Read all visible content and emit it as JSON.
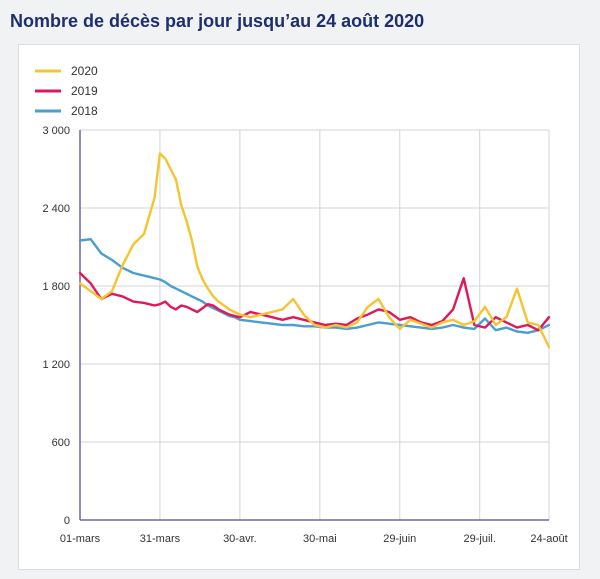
{
  "title": "Nombre de décès par jour jusqu’au 24 août 2020",
  "colors": {
    "title": "#1c2f6e",
    "axis": "#6a63b6",
    "grid": "#d4d4d4"
  },
  "chart_data": {
    "type": "line",
    "title": "Nombre de décès par jour jusqu’au 24 août 2020",
    "xlabel": "",
    "ylabel": "",
    "ylim": [
      0,
      3000
    ],
    "yticks": [
      0,
      600,
      1200,
      1800,
      2400,
      3000
    ],
    "ytick_labels": [
      "0",
      "600",
      "1 200",
      "1 800",
      "2 400",
      "3 000"
    ],
    "xticks": [
      {
        "day": 0,
        "label": "01-mars"
      },
      {
        "day": 30,
        "label": "31-mars"
      },
      {
        "day": 60,
        "label": "30-avr."
      },
      {
        "day": 90,
        "label": "30-mai"
      },
      {
        "day": 120,
        "label": "29-juin"
      },
      {
        "day": 150,
        "label": "29-juil."
      },
      {
        "day": 176,
        "label": "24-août"
      }
    ],
    "grid": true,
    "legend_position": "top-left",
    "x": [
      0,
      4,
      8,
      12,
      16,
      20,
      24,
      28,
      30,
      32,
      34,
      36,
      38,
      40,
      42,
      44,
      46,
      48,
      50,
      52,
      54,
      56,
      58,
      60,
      64,
      68,
      72,
      76,
      80,
      84,
      88,
      92,
      96,
      100,
      104,
      108,
      112,
      116,
      120,
      124,
      128,
      132,
      136,
      140,
      144,
      148,
      152,
      156,
      160,
      164,
      168,
      172,
      176
    ],
    "series": [
      {
        "name": "2020",
        "color": "#f4c431",
        "values": [
          1820,
          1760,
          1700,
          1760,
          1960,
          2120,
          2200,
          2480,
          2820,
          2780,
          2700,
          2620,
          2420,
          2300,
          2150,
          1950,
          1850,
          1780,
          1720,
          1680,
          1650,
          1620,
          1600,
          1580,
          1560,
          1580,
          1600,
          1620,
          1700,
          1580,
          1500,
          1480,
          1500,
          1480,
          1520,
          1640,
          1700,
          1560,
          1470,
          1540,
          1510,
          1480,
          1520,
          1540,
          1500,
          1530,
          1640,
          1500,
          1560,
          1780,
          1520,
          1500,
          1330
        ]
      },
      {
        "name": "2019",
        "color": "#e0185a",
        "values": [
          1900,
          1820,
          1700,
          1740,
          1720,
          1680,
          1670,
          1650,
          1660,
          1680,
          1640,
          1620,
          1650,
          1640,
          1620,
          1600,
          1630,
          1660,
          1650,
          1620,
          1600,
          1580,
          1570,
          1560,
          1600,
          1580,
          1560,
          1540,
          1560,
          1540,
          1520,
          1500,
          1510,
          1500,
          1550,
          1580,
          1620,
          1600,
          1540,
          1560,
          1520,
          1500,
          1530,
          1620,
          1860,
          1500,
          1480,
          1560,
          1520,
          1480,
          1500,
          1460,
          1560
        ]
      },
      {
        "name": "2018",
        "color": "#4a9ed1",
        "values": [
          2150,
          2160,
          2050,
          2000,
          1940,
          1900,
          1880,
          1860,
          1850,
          1830,
          1800,
          1780,
          1760,
          1740,
          1720,
          1700,
          1680,
          1650,
          1630,
          1610,
          1590,
          1570,
          1560,
          1540,
          1530,
          1520,
          1510,
          1500,
          1500,
          1490,
          1490,
          1480,
          1480,
          1470,
          1480,
          1500,
          1520,
          1510,
          1500,
          1490,
          1480,
          1470,
          1480,
          1500,
          1480,
          1470,
          1550,
          1460,
          1480,
          1450,
          1440,
          1460,
          1500
        ]
      }
    ]
  }
}
